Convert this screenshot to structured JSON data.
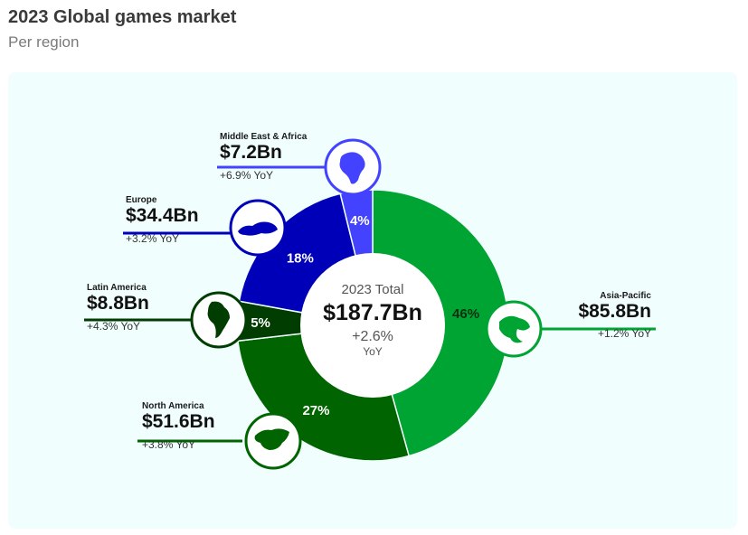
{
  "header": {
    "title": "2023 Global games market",
    "subtitle": "Per region"
  },
  "chart_data": {
    "type": "pie",
    "total": {
      "label": "2023 Total",
      "value": "$187.7Bn",
      "growth": "+2.6%",
      "growth_unit": "YoY"
    },
    "series": [
      {
        "name": "Asia-Pacific",
        "value": 85.8,
        "value_label": "$85.8Bn",
        "percent": 46,
        "percent_label": "46%",
        "yoy": "+1.2% YoY",
        "color": "#00a433",
        "icon": "asia-pacific-map-icon"
      },
      {
        "name": "North America",
        "value": 51.6,
        "value_label": "$51.6Bn",
        "percent": 27,
        "percent_label": "27%",
        "yoy": "+3.8% YoY",
        "color": "#006400",
        "icon": "north-america-map-icon"
      },
      {
        "name": "Latin America",
        "value": 8.8,
        "value_label": "$8.8Bn",
        "percent": 5,
        "percent_label": "5%",
        "yoy": "+4.3% YoY",
        "color": "#013d01",
        "icon": "latin-america-map-icon"
      },
      {
        "name": "Europe",
        "value": 34.4,
        "value_label": "$34.4Bn",
        "percent": 18,
        "percent_label": "18%",
        "yoy": "+3.2% YoY",
        "color": "#0000b8",
        "icon": "europe-map-icon"
      },
      {
        "name": "Middle East & Africa",
        "value": 7.2,
        "value_label": "$7.2Bn",
        "percent": 4,
        "percent_label": "4%",
        "yoy": "+6.9% YoY",
        "color": "#4343ff",
        "icon": "middle-east-africa-map-icon"
      }
    ],
    "legend": "none"
  }
}
